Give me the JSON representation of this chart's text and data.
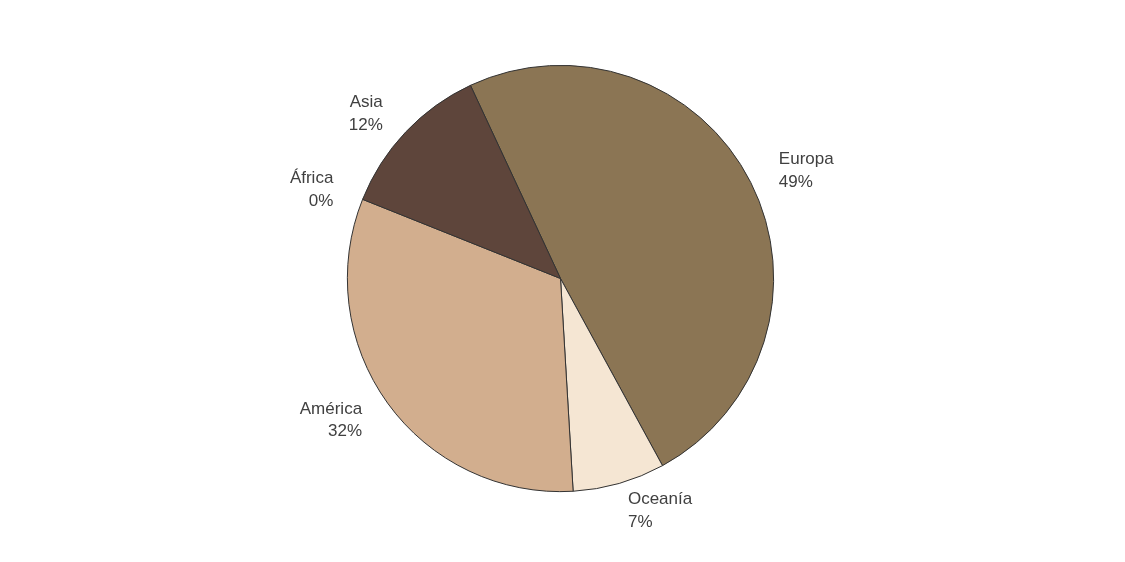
{
  "chart_data": {
    "type": "pie",
    "categories": [
      "Europa",
      "Oceanía",
      "América",
      "África",
      "Asia"
    ],
    "values": [
      49,
      7,
      32,
      0,
      12
    ],
    "colors": [
      "#8b7554",
      "#f5e6d3",
      "#d2ae8e",
      "#a0826d",
      "#5e453b"
    ],
    "value_labels": [
      "49%",
      "7%",
      "32%",
      "0%",
      "12%"
    ]
  }
}
